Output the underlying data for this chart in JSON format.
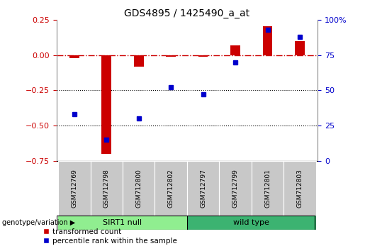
{
  "title": "GDS4895 / 1425490_a_at",
  "samples": [
    "GSM712769",
    "GSM712798",
    "GSM712800",
    "GSM712802",
    "GSM712797",
    "GSM712799",
    "GSM712801",
    "GSM712803"
  ],
  "red_values": [
    -0.022,
    -0.7,
    -0.08,
    -0.012,
    -0.012,
    0.068,
    0.205,
    0.1
  ],
  "blue_percentiles": [
    33,
    15,
    30,
    52,
    47,
    70,
    93,
    88
  ],
  "ylim_left": [
    -0.75,
    0.25
  ],
  "yticks_left": [
    0.25,
    0.0,
    -0.25,
    -0.5,
    -0.75
  ],
  "ylim_right": [
    0,
    100
  ],
  "yticks_right": [
    100,
    75,
    50,
    25,
    0
  ],
  "dotted_lines": [
    -0.25,
    -0.5
  ],
  "sirt1_null_indices": [
    0,
    1,
    2,
    3
  ],
  "wild_type_indices": [
    4,
    5,
    6,
    7
  ],
  "group_label_sirt1": "SIRT1 null",
  "group_label_wild": "wild type",
  "group_label_prefix": "genotype/variation",
  "legend_red": "transformed count",
  "legend_blue": "percentile rank within the sample",
  "bar_color_red": "#cc0000",
  "bar_color_blue": "#0000cc",
  "sirt1_bg": "#90ee90",
  "wild_bg": "#3cb371",
  "right_axis_color": "#0000cc",
  "left_axis_color": "#cc0000",
  "dashed_line_color": "#cc0000",
  "dotted_line_color": "#000000",
  "xtick_bg": "#c8c8c8",
  "bar_width": 0.3,
  "blue_marker_size": 5
}
